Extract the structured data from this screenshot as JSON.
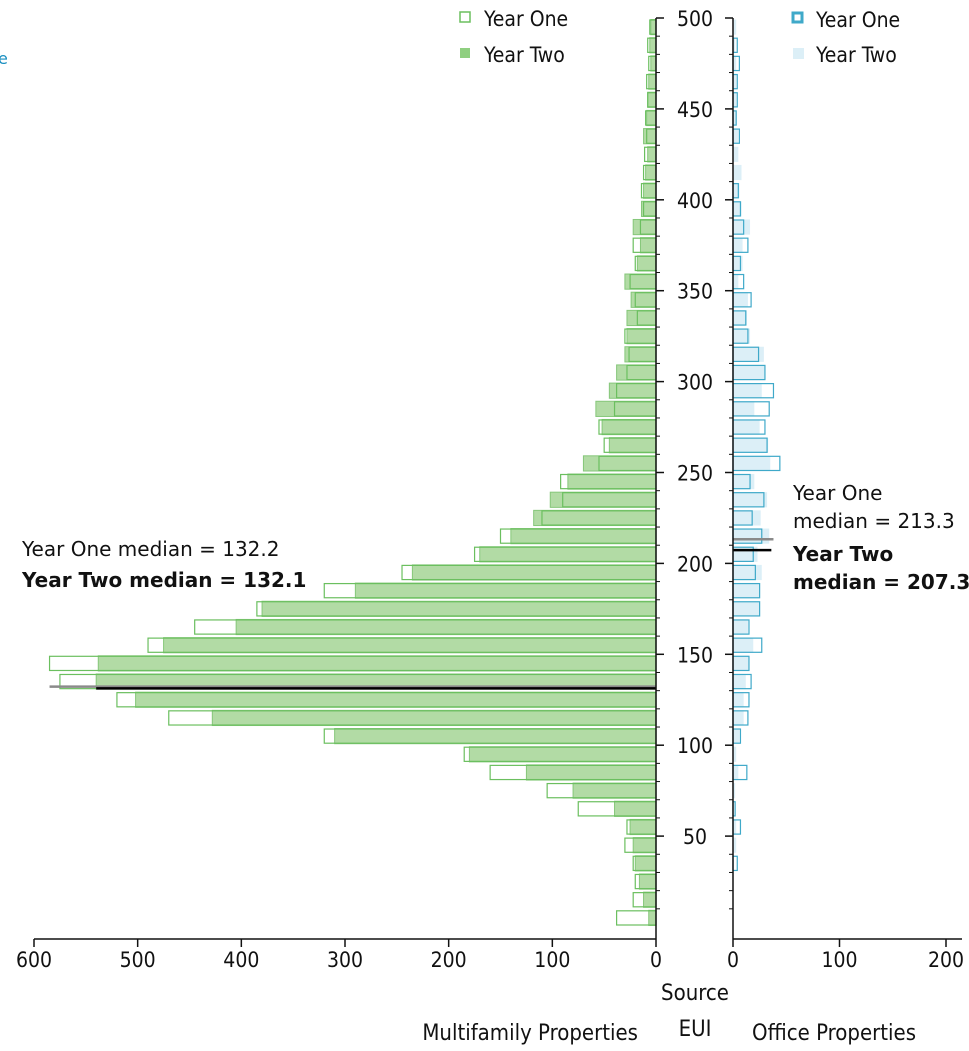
{
  "chart_data": {
    "type": "bar",
    "orientation": "horizontal",
    "layout": "back-to-back histogram",
    "bin_width": 10,
    "bins_start": [
      0,
      10,
      20,
      30,
      40,
      50,
      60,
      70,
      80,
      90,
      100,
      110,
      120,
      130,
      140,
      150,
      160,
      170,
      180,
      190,
      200,
      210,
      220,
      230,
      240,
      250,
      260,
      270,
      280,
      290,
      300,
      310,
      320,
      330,
      340,
      350,
      360,
      370,
      380,
      390,
      400,
      410,
      420,
      430,
      440,
      450,
      460,
      470,
      480,
      490
    ],
    "center_axis": {
      "label_line1": "Source",
      "label_line2": "EUI",
      "range": [
        0,
        500
      ],
      "ticks": [
        50,
        100,
        150,
        200,
        250,
        300,
        350,
        400,
        450,
        500
      ]
    },
    "panels": [
      {
        "id": "multifamily",
        "xlabel": "Multifamily Properties",
        "xlim": [
          0,
          600
        ],
        "ticks": [
          600,
          500,
          400,
          300,
          200,
          100,
          0
        ],
        "colors": {
          "year_one": "#6bbf5f",
          "year_two": "#b2dba5"
        },
        "series": [
          {
            "name": "Year One",
            "style": "outline",
            "values": [
              38,
              22,
              20,
              22,
              30,
              28,
              75,
              105,
              160,
              185,
              320,
              470,
              520,
              575,
              585,
              490,
              445,
              385,
              320,
              245,
              175,
              150,
              110,
              90,
              92,
              55,
              50,
              55,
              40,
              38,
              28,
              26,
              30,
              18,
              20,
              25,
              20,
              22,
              15,
              12,
              14,
              12,
              11,
              9,
              10,
              8,
              9,
              7,
              8,
              6
            ]
          },
          {
            "name": "Year Two",
            "style": "filled",
            "values": [
              7,
              12,
              16,
              20,
              22,
              25,
              40,
              80,
              125,
              180,
              310,
              428,
              502,
              540,
              538,
              475,
              405,
              380,
              290,
              235,
              170,
              140,
              118,
              102,
              85,
              70,
              45,
              52,
              58,
              45,
              38,
              30,
              28,
              28,
              24,
              30,
              18,
              15,
              22,
              14,
              12,
              10,
              8,
              12,
              9,
              8,
              7,
              5,
              6,
              5
            ]
          }
        ],
        "medians": [
          {
            "label": "Year One median = 132.2",
            "value": 132.2,
            "color": "#8a8a8a"
          },
          {
            "label": "Year Two median = 132.1",
            "value": 132.1,
            "color": "#000000"
          }
        ]
      },
      {
        "id": "office",
        "xlabel": "Office Properties",
        "xlim": [
          0,
          220
        ],
        "ticks": [
          0,
          100,
          200
        ],
        "colors": {
          "year_one": "#3fa9c9",
          "year_two": "#dceff7"
        },
        "series": [
          {
            "name": "Year One",
            "style": "outline",
            "values": [
              0,
              0,
              0,
              4,
              0,
              7,
              2,
              0,
              13,
              0,
              7,
              14,
              15,
              17,
              15,
              27,
              15,
              25,
              25,
              21,
              19,
              27,
              18,
              29,
              16,
              44,
              32,
              30,
              34,
              38,
              30,
              24,
              14,
              12,
              17,
              10,
              7,
              14,
              10,
              7,
              5,
              0,
              0,
              6,
              3,
              4,
              4,
              6,
              4,
              0
            ]
          },
          {
            "name": "Year Two",
            "style": "filled",
            "values": [
              0,
              0,
              0,
              0,
              3,
              3,
              0,
              2,
              5,
              3,
              6,
              10,
              10,
              12,
              15,
              19,
              14,
              25,
              25,
              27,
              23,
              34,
              26,
              32,
              20,
              35,
              33,
              25,
              20,
              27,
              30,
              29,
              16,
              13,
              14,
              5,
              9,
              9,
              16,
              8,
              6,
              8,
              5,
              5,
              3,
              3,
              3,
              3,
              2,
              3
            ]
          }
        ],
        "medians": [
          {
            "label_line1": "Year One",
            "label_line2": "median = 213.3",
            "value": 213.3,
            "color": "#8a8a8a"
          },
          {
            "label_line1": "Year Two",
            "label_line2": "median = 207.3",
            "value": 207.3,
            "color": "#000000"
          }
        ]
      }
    ],
    "legends": {
      "multifamily": [
        "Year One",
        "Year Two"
      ],
      "office": [
        "Year One",
        "Year Two"
      ]
    },
    "fragment_text": "e"
  }
}
